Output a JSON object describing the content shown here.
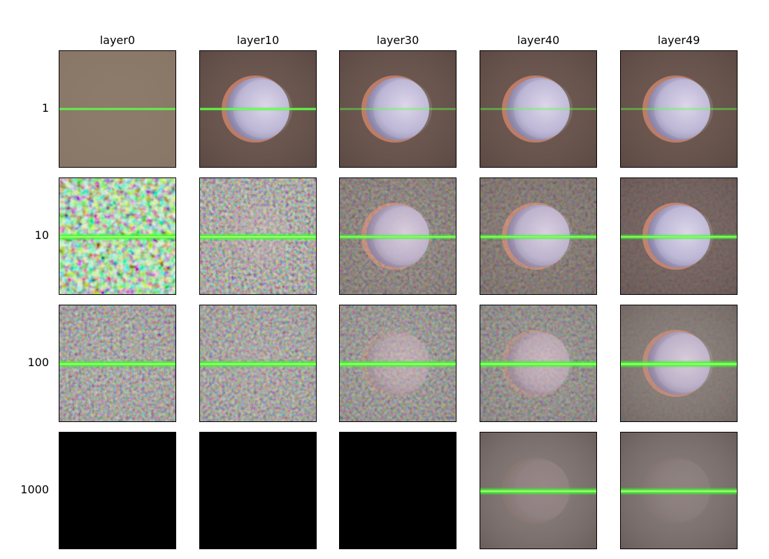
{
  "figure": {
    "column_labels": [
      "layer0",
      "layer10",
      "layer30",
      "layer40",
      "layer49"
    ],
    "row_labels": [
      "1",
      "10",
      "100",
      "1000"
    ],
    "cells": [
      [
        {
          "kind": "flat",
          "bg": "#8c7a6a",
          "noise": 0.0,
          "sphere": 0.0,
          "beam": "thin"
        },
        {
          "kind": "scene",
          "bg": "#6e5a52",
          "noise": 0.0,
          "sphere": 1.0,
          "beam": "thin-bright"
        },
        {
          "kind": "scene",
          "bg": "#6e5a52",
          "noise": 0.0,
          "sphere": 1.0,
          "beam": "thin-faint"
        },
        {
          "kind": "scene",
          "bg": "#6e5a52",
          "noise": 0.0,
          "sphere": 1.0,
          "beam": "thin-faint"
        },
        {
          "kind": "scene",
          "bg": "#6e5a52",
          "noise": 0.0,
          "sphere": 1.0,
          "beam": "thin-faint"
        }
      ],
      [
        {
          "kind": "noise",
          "bg": "#6b6b52",
          "noise": 1.0,
          "sphere": 0.0,
          "beam": "thick"
        },
        {
          "kind": "noise",
          "bg": "#7a7460",
          "noise": 0.8,
          "sphere": 0.15,
          "beam": "thick"
        },
        {
          "kind": "scene",
          "bg": "#6e5e56",
          "noise": 0.45,
          "sphere": 0.85,
          "beam": "medium"
        },
        {
          "kind": "scene",
          "bg": "#6e5e56",
          "noise": 0.35,
          "sphere": 0.9,
          "beam": "medium"
        },
        {
          "kind": "scene",
          "bg": "#6e5a56",
          "noise": 0.15,
          "sphere": 1.0,
          "beam": "medium"
        }
      ],
      [
        {
          "kind": "noise",
          "bg": "#7f7a72",
          "noise": 0.7,
          "sphere": 0.0,
          "beam": "thick"
        },
        {
          "kind": "noise",
          "bg": "#7f7a72",
          "noise": 0.7,
          "sphere": 0.05,
          "beam": "thick"
        },
        {
          "kind": "scene",
          "bg": "#7c7670",
          "noise": 0.55,
          "sphere": 0.35,
          "beam": "thick"
        },
        {
          "kind": "scene",
          "bg": "#7c7670",
          "noise": 0.45,
          "sphere": 0.5,
          "beam": "thick"
        },
        {
          "kind": "scene",
          "bg": "#867c76",
          "noise": 0.1,
          "sphere": 0.85,
          "beam": "thick"
        }
      ],
      [
        {
          "kind": "black",
          "bg": "#000000",
          "noise": 0.0,
          "sphere": 0.0,
          "beam": "none"
        },
        {
          "kind": "black",
          "bg": "#000000",
          "noise": 0.0,
          "sphere": 0.0,
          "beam": "none"
        },
        {
          "kind": "black",
          "bg": "#000000",
          "noise": 0.0,
          "sphere": 0.0,
          "beam": "none"
        },
        {
          "kind": "scene",
          "bg": "#857b78",
          "noise": 0.0,
          "sphere": 0.12,
          "beam": "thick"
        },
        {
          "kind": "scene",
          "bg": "#847a78",
          "noise": 0.0,
          "sphere": 0.08,
          "beam": "thick"
        }
      ]
    ]
  }
}
